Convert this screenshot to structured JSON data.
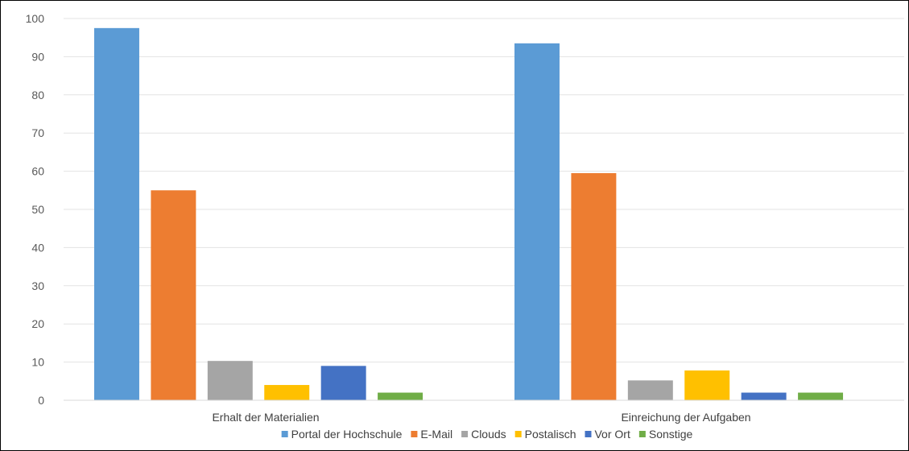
{
  "chart_data": {
    "type": "bar",
    "categories": [
      "Erhalt der Materialien",
      "Einreichung der Aufgaben"
    ],
    "series": [
      {
        "name": "Portal der Hochschule",
        "color": "#5B9BD5",
        "values": [
          97.5,
          93.5
        ]
      },
      {
        "name": "E-Mail",
        "color": "#ED7D31",
        "values": [
          55,
          59.5
        ]
      },
      {
        "name": "Clouds",
        "color": "#A5A5A5",
        "values": [
          10.3,
          5.2
        ]
      },
      {
        "name": "Postalisch",
        "color": "#FFC000",
        "values": [
          4,
          7.8
        ]
      },
      {
        "name": "Vor Ort",
        "color": "#4472C4",
        "values": [
          9,
          2
        ]
      },
      {
        "name": "Sonstige",
        "color": "#70AD47",
        "values": [
          2,
          2
        ]
      }
    ],
    "y_ticks": [
      0,
      10,
      20,
      30,
      40,
      50,
      60,
      70,
      80,
      90,
      100
    ],
    "ylim": [
      0,
      100
    ],
    "grid": true,
    "legend_position": "bottom"
  }
}
